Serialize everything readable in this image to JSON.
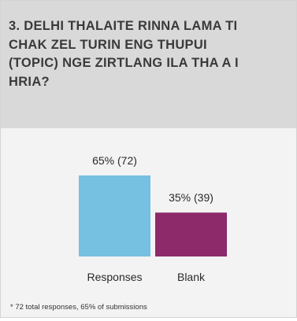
{
  "title": "3. DELHI THALAITE RINNA LAMA TI CHAK ZEL TURIN ENG THUPUI (TOPIC) NGE ZIRTLANG ILA THA A I HRIA?",
  "footnote": "* 72 total responses, 65% of submissions",
  "colors": {
    "responses": "#76c0e2",
    "blank": "#8c2a6a"
  },
  "chart_data": {
    "type": "bar",
    "categories": [
      "Responses",
      "Blank"
    ],
    "values": [
      72,
      39
    ],
    "percents": [
      65,
      35
    ],
    "data_labels": [
      "65% (72)",
      "35% (39)"
    ],
    "title": "3. DELHI THALAITE RINNA LAMA TI CHAK ZEL TURIN ENG THUPUI (TOPIC) NGE ZIRTLANG ILA THA A I HRIA?",
    "xlabel": "",
    "ylabel": "",
    "ylim": [
      0,
      72
    ],
    "grid": false,
    "legend": "none"
  }
}
